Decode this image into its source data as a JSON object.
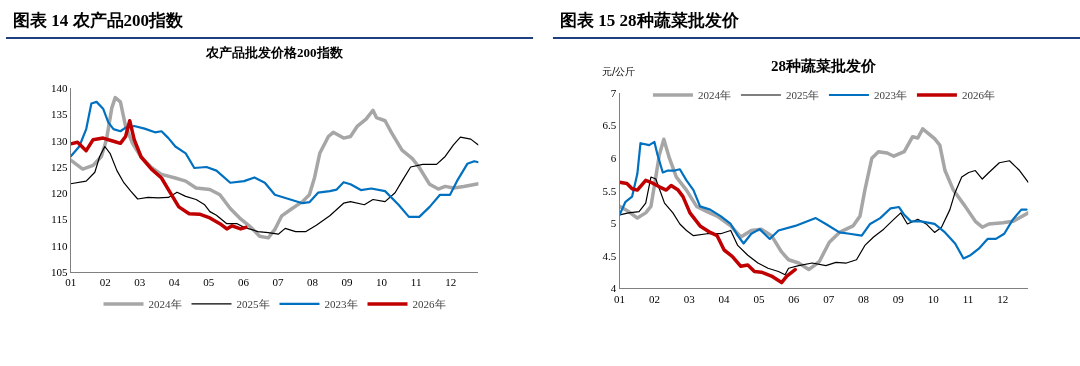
{
  "chart_data": [
    {
      "type": "line",
      "title": "图表 14 农产品200指数",
      "subtitle": "农产品批发价格200指数",
      "legend": "bottom",
      "xlim": [
        1,
        12.8
      ],
      "xticks": [
        {
          "value": 1,
          "label": "01"
        },
        {
          "value": 2,
          "label": "02"
        },
        {
          "value": 3,
          "label": "03"
        },
        {
          "value": 4,
          "label": "04"
        },
        {
          "value": 5,
          "label": "05"
        },
        {
          "value": 6,
          "label": "06"
        },
        {
          "value": 7,
          "label": "07"
        },
        {
          "value": 8,
          "label": "08"
        },
        {
          "value": 9,
          "label": "09"
        },
        {
          "value": 10,
          "label": "10"
        },
        {
          "value": 11,
          "label": "11"
        },
        {
          "value": 12,
          "label": "12"
        }
      ],
      "ylim": [
        105,
        140
      ],
      "yticks": [
        105,
        110,
        115,
        120,
        125,
        130,
        135,
        140
      ],
      "series": [
        {
          "name": "2024年",
          "color": "#a6a6a6",
          "x": [
            1.0,
            1.35,
            1.65,
            1.89,
            2.04,
            2.19,
            2.29,
            2.44,
            2.59,
            2.79,
            3.04,
            3.34,
            3.63,
            4.03,
            4.33,
            4.63,
            5.03,
            5.32,
            5.62,
            5.92,
            6.22,
            6.47,
            6.72,
            6.91,
            7.11,
            7.41,
            7.71,
            7.91,
            8.06,
            8.21,
            8.46,
            8.6,
            8.9,
            9.1,
            9.3,
            9.55,
            9.75,
            9.85,
            10.1,
            10.29,
            10.59,
            10.89,
            11.09,
            11.39,
            11.64,
            11.84,
            12.08,
            12.38,
            12.8
          ],
          "values": [
            126.3,
            124.6,
            125.3,
            127,
            130.3,
            136.2,
            138.2,
            137.4,
            132.8,
            129.5,
            126.9,
            124.9,
            123.6,
            122.9,
            122.3,
            121,
            120.7,
            119.7,
            117.1,
            115.1,
            113.5,
            111.8,
            111.5,
            113.1,
            115.7,
            117.1,
            118.4,
            119.7,
            123,
            127.6,
            130.8,
            131.6,
            130.5,
            130.8,
            132.8,
            134.1,
            135.8,
            134.4,
            133.8,
            131.5,
            128.2,
            126.6,
            124.9,
            121.7,
            120.8,
            121.3,
            121,
            121.3,
            121.8
          ]
        },
        {
          "name": "2025年",
          "color": "#000000",
          "x": [
            1.0,
            1.45,
            1.7,
            1.84,
            1.99,
            2.14,
            2.34,
            2.54,
            2.74,
            2.94,
            3.24,
            3.53,
            3.83,
            4.08,
            4.33,
            4.63,
            4.88,
            5.03,
            5.22,
            5.52,
            5.82,
            6.02,
            6.42,
            6.72,
            7.01,
            7.21,
            7.51,
            7.81,
            8.11,
            8.5,
            8.9,
            9.1,
            9.5,
            9.75,
            10.1,
            10.39,
            10.59,
            10.84,
            11.19,
            11.59,
            11.84,
            12.08,
            12.28,
            12.58,
            12.8
          ],
          "values": [
            121.8,
            122.3,
            124,
            127,
            128.9,
            127.6,
            124.3,
            122,
            120.4,
            118.9,
            119.2,
            119.1,
            119.2,
            120.2,
            119.4,
            118.8,
            117.8,
            116.5,
            115.8,
            114.2,
            114.2,
            113.5,
            112.7,
            112.5,
            112.2,
            113.3,
            112.7,
            112.7,
            113.9,
            115.7,
            118.1,
            118.4,
            117.8,
            118.8,
            118.4,
            120.1,
            122.3,
            125,
            125.5,
            125.5,
            127,
            129.2,
            130.7,
            130.3,
            129.2
          ]
        },
        {
          "name": "2023年",
          "color": "#0070c0",
          "x": [
            1.0,
            1.25,
            1.45,
            1.6,
            1.75,
            1.94,
            2.09,
            2.24,
            2.44,
            2.59,
            2.84,
            3.14,
            3.44,
            3.63,
            3.83,
            4.03,
            4.33,
            4.58,
            4.93,
            5.22,
            5.62,
            6.02,
            6.32,
            6.62,
            6.91,
            7.31,
            7.71,
            7.91,
            8.16,
            8.5,
            8.7,
            8.9,
            9.1,
            9.4,
            9.7,
            10.1,
            10.49,
            10.79,
            11.09,
            11.39,
            11.69,
            11.98,
            12.18,
            12.48,
            12.68,
            12.8
          ],
          "values": [
            127,
            128.9,
            132.2,
            137.1,
            137.4,
            136.1,
            133.5,
            132.2,
            131.8,
            132.5,
            132.8,
            132.3,
            131.6,
            131.8,
            130.5,
            128.9,
            127.6,
            124.8,
            125,
            124.3,
            122,
            122.3,
            123,
            122,
            119.7,
            118.9,
            118.1,
            118.3,
            120.1,
            120.4,
            120.7,
            122.1,
            121.7,
            120.6,
            120.9,
            120.4,
            117.8,
            115.5,
            115.5,
            117.4,
            119.7,
            119.7,
            122.3,
            125.6,
            126.1,
            125.9
          ]
        },
        {
          "name": "2026年",
          "color": "#c00000",
          "x": [
            1.0,
            1.2,
            1.45,
            1.65,
            1.94,
            2.24,
            2.44,
            2.59,
            2.71,
            2.84,
            3.04,
            3.34,
            3.63,
            3.83,
            4.13,
            4.43,
            4.73,
            5.03,
            5.32,
            5.52,
            5.67,
            5.92,
            6.07
          ],
          "values": [
            129.4,
            129.7,
            128.1,
            130.2,
            130.5,
            129.9,
            129.5,
            130.8,
            133.8,
            130.2,
            126.9,
            124.6,
            122.9,
            120.7,
            117.4,
            116.1,
            116,
            115.3,
            114.2,
            113.2,
            113.8,
            113.2,
            113.5
          ]
        }
      ]
    },
    {
      "type": "line",
      "title": "图表 15 28种蔬菜批发价",
      "subtitle": "28种蔬菜批发价",
      "ylabel": "元/公斤",
      "legend": "top",
      "xlim": [
        1,
        12.73
      ],
      "xticks": [
        {
          "value": 1,
          "label": "01"
        },
        {
          "value": 2,
          "label": "02"
        },
        {
          "value": 3,
          "label": "03"
        },
        {
          "value": 4,
          "label": "04"
        },
        {
          "value": 5,
          "label": "05"
        },
        {
          "value": 6,
          "label": "06"
        },
        {
          "value": 7,
          "label": "07"
        },
        {
          "value": 8,
          "label": "08"
        },
        {
          "value": 9,
          "label": "09"
        },
        {
          "value": 10,
          "label": "10"
        },
        {
          "value": 11,
          "label": "11"
        },
        {
          "value": 12,
          "label": "12"
        }
      ],
      "ylim": [
        4,
        7
      ],
      "yticks": [
        4,
        4.5,
        5,
        5.5,
        6,
        6.5,
        7
      ],
      "series": [
        {
          "name": "2024年",
          "color": "#a6a6a6",
          "x": [
            1.0,
            1.26,
            1.51,
            1.75,
            1.9,
            2.04,
            2.14,
            2.27,
            2.43,
            2.63,
            2.92,
            3.21,
            3.51,
            3.8,
            4.19,
            4.48,
            4.78,
            5.07,
            5.36,
            5.65,
            5.85,
            6.14,
            6.43,
            6.73,
            7.02,
            7.31,
            7.7,
            7.9,
            8.04,
            8.24,
            8.43,
            8.68,
            8.87,
            9.17,
            9.41,
            9.56,
            9.7,
            10.04,
            10.19,
            10.34,
            10.58,
            10.92,
            11.21,
            11.41,
            11.6,
            12.0,
            12.29,
            12.73
          ],
          "values": [
            5.26,
            5.18,
            5.08,
            5.16,
            5.26,
            5.71,
            6.05,
            6.29,
            6.0,
            5.71,
            5.51,
            5.26,
            5.18,
            5.11,
            4.96,
            4.79,
            4.89,
            4.91,
            4.81,
            4.56,
            4.44,
            4.39,
            4.29,
            4.41,
            4.71,
            4.86,
            4.96,
            5.11,
            5.51,
            6.0,
            6.1,
            6.08,
            6.03,
            6.1,
            6.33,
            6.31,
            6.45,
            6.3,
            6.2,
            5.81,
            5.51,
            5.26,
            5.03,
            4.94,
            4.99,
            5.01,
            5.03,
            5.16
          ]
        },
        {
          "name": "2025年",
          "color": "#000000",
          "x": [
            1.0,
            1.26,
            1.56,
            1.75,
            1.9,
            2.04,
            2.29,
            2.53,
            2.73,
            2.92,
            3.12,
            3.51,
            3.9,
            4.19,
            4.39,
            4.68,
            4.97,
            5.26,
            5.56,
            5.75,
            5.85,
            6.14,
            6.53,
            6.92,
            7.21,
            7.51,
            7.8,
            8.04,
            8.29,
            8.58,
            8.87,
            9.07,
            9.26,
            9.56,
            9.8,
            10.04,
            10.24,
            10.48,
            10.62,
            10.82,
            11.02,
            11.21,
            11.41,
            11.6,
            11.9,
            12.19,
            12.48,
            12.73
          ],
          "values": [
            5.13,
            5.16,
            5.18,
            5.31,
            5.71,
            5.68,
            5.31,
            5.16,
            4.99,
            4.89,
            4.81,
            4.84,
            4.84,
            4.89,
            4.66,
            4.51,
            4.39,
            4.31,
            4.26,
            4.21,
            4.31,
            4.35,
            4.39,
            4.35,
            4.4,
            4.39,
            4.44,
            4.66,
            4.79,
            4.91,
            5.06,
            5.16,
            4.99,
            5.06,
            4.99,
            4.86,
            4.94,
            5.21,
            5.46,
            5.71,
            5.78,
            5.81,
            5.68,
            5.78,
            5.93,
            5.96,
            5.81,
            5.63
          ]
        },
        {
          "name": "2023年",
          "color": "#0070c0",
          "x": [
            1.0,
            1.17,
            1.36,
            1.51,
            1.6,
            1.85,
            2.0,
            2.09,
            2.24,
            2.39,
            2.58,
            2.73,
            2.92,
            3.12,
            3.31,
            3.6,
            3.9,
            4.19,
            4.39,
            4.56,
            4.78,
            5.02,
            5.31,
            5.56,
            6.04,
            6.63,
            6.92,
            7.31,
            7.6,
            7.95,
            8.19,
            8.48,
            8.78,
            9.02,
            9.17,
            9.36,
            9.65,
            10.04,
            10.34,
            10.63,
            10.87,
            11.07,
            11.31,
            11.56,
            11.8,
            12.04,
            12.29,
            12.53,
            12.68
          ],
          "values": [
            5.13,
            5.33,
            5.41,
            5.76,
            6.23,
            6.2,
            6.25,
            6.05,
            5.78,
            5.81,
            5.81,
            5.83,
            5.66,
            5.51,
            5.26,
            5.21,
            5.11,
            4.99,
            4.81,
            4.69,
            4.84,
            4.91,
            4.76,
            4.89,
            4.96,
            5.08,
            4.99,
            4.86,
            4.84,
            4.81,
            4.99,
            5.08,
            5.23,
            5.25,
            5.13,
            5.03,
            5.03,
            4.99,
            4.86,
            4.69,
            4.46,
            4.51,
            4.61,
            4.76,
            4.76,
            4.84,
            5.06,
            5.21,
            5.21
          ]
        },
        {
          "name": "2026年",
          "color": "#c00000",
          "x": [
            1.0,
            1.21,
            1.36,
            1.51,
            1.75,
            1.9,
            2.14,
            2.34,
            2.48,
            2.68,
            2.82,
            3.02,
            3.31,
            3.6,
            3.8,
            4.0,
            4.24,
            4.48,
            4.68,
            4.87,
            5.07,
            5.36,
            5.65,
            5.8,
            6.04
          ],
          "values": [
            5.63,
            5.61,
            5.53,
            5.51,
            5.66,
            5.63,
            5.56,
            5.51,
            5.58,
            5.51,
            5.41,
            5.16,
            4.96,
            4.86,
            4.81,
            4.59,
            4.49,
            4.34,
            4.36,
            4.26,
            4.25,
            4.19,
            4.09,
            4.19,
            4.29
          ]
        }
      ]
    }
  ]
}
